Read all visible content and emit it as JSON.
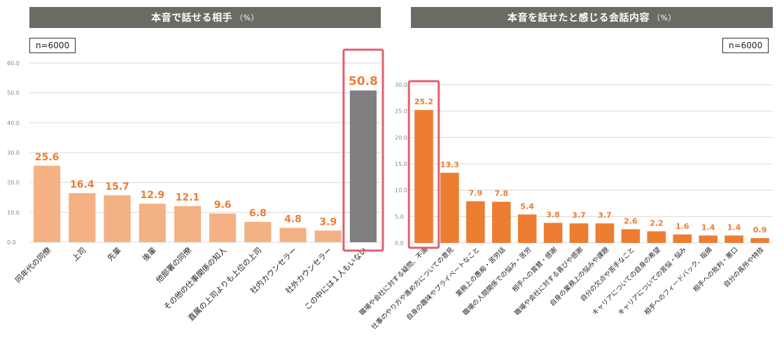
{
  "chart_data": [
    {
      "type": "bar",
      "title": "本音で話せる相手",
      "unit": "（%）",
      "sample": "n=6000",
      "categories": [
        "同年代の同僚",
        "上司",
        "先輩",
        "後輩",
        "他部署の同僚",
        "その他の仕事関係の知人",
        "直属の上司よりも上位の上司",
        "社内カウンセラー",
        "社外カウンセラー",
        "この中には１人もいない"
      ],
      "values": [
        25.6,
        16.4,
        15.7,
        12.9,
        12.1,
        9.6,
        6.8,
        4.8,
        3.9,
        50.8
      ],
      "value_labels": [
        "25.6",
        "16.4",
        "15.7",
        "12.9",
        "12.1",
        "9.6",
        "6.8",
        "4.8",
        "3.9",
        "50.8"
      ],
      "ylim": [
        0,
        60
      ],
      "yticks": [
        "0.0",
        "10.0",
        "20.0",
        "30.0",
        "40.0",
        "50.0",
        "60.0"
      ],
      "bar_color": "#f4b183",
      "highlight_color": "#7f7f7f",
      "highlight_index": 9,
      "frame_color": "#e06070",
      "grid": true
    },
    {
      "type": "bar",
      "title": "本音を話せたと感じる会話内容",
      "unit": "（%）",
      "sample": "n=6000",
      "categories": [
        "職場や会社に対する疑問、不満",
        "仕事のやり方や進め方についての意見",
        "自身の趣味やプライベートなこと",
        "業務上の愚痴・苦労話",
        "職場の人間関係での悩み・苦労",
        "相手への賞賛・感謝",
        "職場や会社に対する喜びや感謝",
        "自身の業務上の悩みや課題",
        "自分の欠点や苦手なこと",
        "キャリアについての自身の希望",
        "キャリアについての苦悩・悩み",
        "相手へのフィードバック、指摘",
        "相手への批判・悪口",
        "自分の長所や特技"
      ],
      "values": [
        25.2,
        13.3,
        7.9,
        7.8,
        5.4,
        3.8,
        3.7,
        3.7,
        2.6,
        2.2,
        1.6,
        1.4,
        1.4,
        0.9
      ],
      "value_labels": [
        "25.2",
        "13.3",
        "7.9",
        "7.8",
        "5.4",
        "3.8",
        "3.7",
        "3.7",
        "2.6",
        "2.2",
        "1.6",
        "1.4",
        "1.4",
        "0.9"
      ],
      "ylim": [
        0,
        30
      ],
      "yticks": [
        "0.0",
        "5.0",
        "10.0",
        "15.0",
        "20.0",
        "25.0",
        "30.0"
      ],
      "bar_color": "#ed7d31",
      "highlight_index": 0,
      "frame_color": "#e06070",
      "grid": true
    }
  ]
}
